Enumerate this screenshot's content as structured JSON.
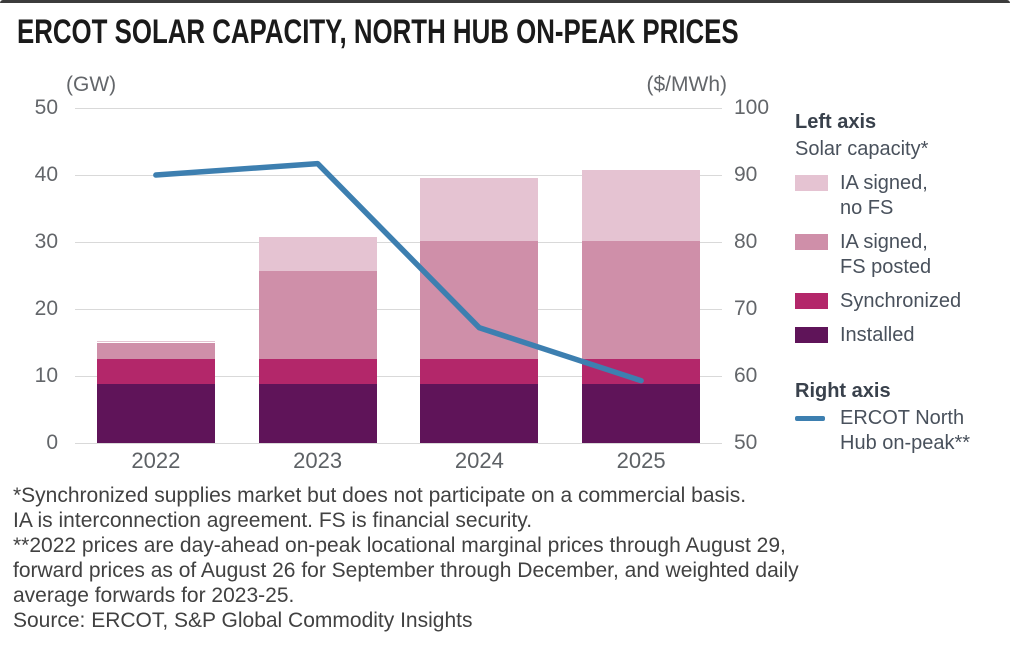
{
  "title": "ERCOT SOLAR CAPACITY, NORTH HUB ON-PEAK PRICES",
  "chart_data": {
    "type": "bar",
    "subtype": "stacked-bars-with-line",
    "categories": [
      "2022",
      "2023",
      "2024",
      "2025"
    ],
    "left_axis": {
      "unit": "(GW)",
      "min": 0,
      "max": 50,
      "ticks": [
        0,
        10,
        20,
        30,
        40,
        50
      ]
    },
    "right_axis": {
      "unit": "($/MWh)",
      "min": 50,
      "max": 100,
      "ticks": [
        50,
        60,
        70,
        80,
        90,
        100
      ]
    },
    "grid": true,
    "legend_position": "right",
    "bar_series": [
      {
        "name": "Installed",
        "color": "#5f1459",
        "values": [
          8.8,
          8.8,
          8.8,
          8.8
        ]
      },
      {
        "name": "Synchronized",
        "color": "#b3276a",
        "values": [
          3.7,
          3.7,
          3.7,
          3.7
        ]
      },
      {
        "name": "IA signed, FS posted",
        "color": "#cf8fa9",
        "values": [
          2.5,
          13.1,
          17.7,
          17.7
        ]
      },
      {
        "name": "IA signed, no FS",
        "color": "#e5c3d2",
        "values": [
          0.2,
          5.2,
          9.4,
          10.6
        ]
      }
    ],
    "bar_totals": [
      15.2,
      30.8,
      39.6,
      40.8
    ],
    "line_series": {
      "name": "ERCOT North Hub on-peak**",
      "color": "#3d7fb0",
      "axis": "right",
      "values": [
        90.0,
        91.7,
        67.2,
        59.3
      ]
    }
  },
  "legend": {
    "left_header": "Left axis",
    "left_subheader": "Solar capacity*",
    "items": [
      {
        "label": "IA signed,\nno FS",
        "color": "#e5c3d2"
      },
      {
        "label": "IA signed,\nFS posted",
        "color": "#cf8fa9"
      },
      {
        "label": "Synchronized",
        "color": "#b3276a"
      },
      {
        "label": "Installed",
        "color": "#5f1459"
      }
    ],
    "right_header": "Right axis",
    "right_item": {
      "label": "ERCOT North\nHub on-peak**",
      "color": "#3d7fb0"
    }
  },
  "footnotes": {
    "lines": [
      "*Synchronized supplies market but does not participate on a commercial basis.",
      "IA is interconnection agreement. FS is financial security.",
      "**2022 prices are day-ahead on-peak locational marginal prices through August 29,",
      "forward prices as of August 26 for September through December, and weighted daily",
      "average forwards for 2023-25.",
      "Source: ERCOT, S&P Global Commodity Insights"
    ]
  }
}
